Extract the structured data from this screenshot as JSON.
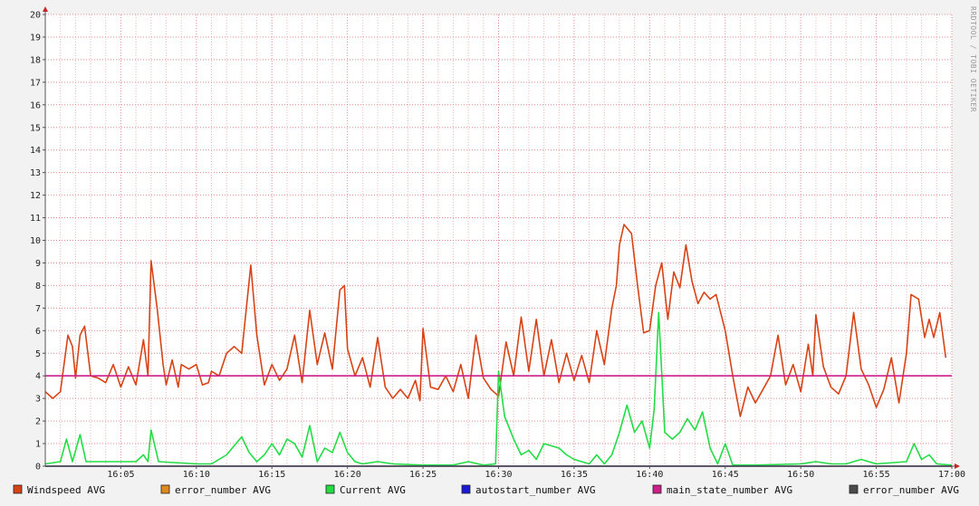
{
  "watermark": "RRDTOOL / TOBI OETIKER",
  "colors": {
    "background": "#f2f2f2",
    "plot_background": "#ffffff",
    "grid_minor": "#f0b8b8",
    "grid_major": "#e08c8c",
    "axis": "#c62828"
  },
  "chart_data": {
    "type": "line",
    "x_unit": "time (HH:MM)",
    "xlim": [
      "16:00",
      "17:00"
    ],
    "ylim": [
      0,
      20
    ],
    "y_ticks": [
      0,
      1,
      2,
      3,
      4,
      5,
      6,
      7,
      8,
      9,
      10,
      11,
      12,
      13,
      14,
      15,
      16,
      17,
      18,
      19,
      20
    ],
    "x_ticks": [
      "16:05",
      "16:10",
      "16:15",
      "16:20",
      "16:25",
      "16:30",
      "16:35",
      "16:40",
      "16:45",
      "16:50",
      "16:55",
      "17:00"
    ],
    "grid": true,
    "legend_position": "bottom",
    "series": [
      {
        "name": "Windspeed AVG",
        "color": "#d84315",
        "points": [
          [
            "16:00",
            3.3
          ],
          [
            "16:00.5",
            3.0
          ],
          [
            "16:01",
            3.3
          ],
          [
            "16:01.5",
            5.8
          ],
          [
            "16:01.8",
            5.3
          ],
          [
            "16:02",
            3.9
          ],
          [
            "16:02.3",
            5.8
          ],
          [
            "16:02.6",
            6.2
          ],
          [
            "16:03",
            4.0
          ],
          [
            "16:03.5",
            3.9
          ],
          [
            "16:04",
            3.7
          ],
          [
            "16:04.5",
            4.5
          ],
          [
            "16:05",
            3.5
          ],
          [
            "16:05.5",
            4.4
          ],
          [
            "16:06",
            3.6
          ],
          [
            "16:06.5",
            5.6
          ],
          [
            "16:06.8",
            4.0
          ],
          [
            "16:07",
            9.1
          ],
          [
            "16:07.4",
            7.0
          ],
          [
            "16:07.8",
            4.5
          ],
          [
            "16:08",
            3.6
          ],
          [
            "16:08.4",
            4.7
          ],
          [
            "16:08.8",
            3.5
          ],
          [
            "16:09",
            4.5
          ],
          [
            "16:09.5",
            4.3
          ],
          [
            "16:10",
            4.5
          ],
          [
            "16:10.4",
            3.6
          ],
          [
            "16:10.8",
            3.7
          ],
          [
            "16:11",
            4.2
          ],
          [
            "16:11.5",
            4.0
          ],
          [
            "16:12",
            5.0
          ],
          [
            "16:12.5",
            5.3
          ],
          [
            "16:13",
            5.0
          ],
          [
            "16:13.6",
            8.9
          ],
          [
            "16:14",
            5.8
          ],
          [
            "16:14.5",
            3.6
          ],
          [
            "16:15",
            4.5
          ],
          [
            "16:15.5",
            3.8
          ],
          [
            "16:16",
            4.3
          ],
          [
            "16:16.5",
            5.8
          ],
          [
            "16:17",
            3.7
          ],
          [
            "16:17.5",
            6.9
          ],
          [
            "16:18",
            4.5
          ],
          [
            "16:18.5",
            5.9
          ],
          [
            "16:19",
            4.3
          ],
          [
            "16:19.5",
            7.8
          ],
          [
            "16:19.8",
            8.0
          ],
          [
            "16:20",
            5.2
          ],
          [
            "16:20.5",
            4.0
          ],
          [
            "16:21",
            4.8
          ],
          [
            "16:21.5",
            3.5
          ],
          [
            "16:22",
            5.7
          ],
          [
            "16:22.5",
            3.5
          ],
          [
            "16:23",
            3.0
          ],
          [
            "16:23.5",
            3.4
          ],
          [
            "16:24",
            3.0
          ],
          [
            "16:24.5",
            3.8
          ],
          [
            "16:24.8",
            2.9
          ],
          [
            "16:25",
            6.1
          ],
          [
            "16:25.5",
            3.5
          ],
          [
            "16:26",
            3.4
          ],
          [
            "16:26.5",
            4.0
          ],
          [
            "16:27",
            3.3
          ],
          [
            "16:27.5",
            4.5
          ],
          [
            "16:28",
            3.0
          ],
          [
            "16:28.5",
            5.8
          ],
          [
            "16:29",
            3.9
          ],
          [
            "16:29.5",
            3.4
          ],
          [
            "16:30",
            3.1
          ],
          [
            "16:30.5",
            5.5
          ],
          [
            "16:31",
            4.0
          ],
          [
            "16:31.5",
            6.6
          ],
          [
            "16:32",
            4.2
          ],
          [
            "16:32.5",
            6.5
          ],
          [
            "16:33",
            4.0
          ],
          [
            "16:33.5",
            5.6
          ],
          [
            "16:34",
            3.7
          ],
          [
            "16:34.5",
            5.0
          ],
          [
            "16:35",
            3.8
          ],
          [
            "16:35.5",
            4.9
          ],
          [
            "16:36",
            3.7
          ],
          [
            "16:36.5",
            6.0
          ],
          [
            "16:37",
            4.5
          ],
          [
            "16:37.5",
            7.0
          ],
          [
            "16:37.8",
            8.0
          ],
          [
            "16:38",
            9.8
          ],
          [
            "16:38.3",
            10.7
          ],
          [
            "16:38.8",
            10.3
          ],
          [
            "16:39.2",
            8.0
          ],
          [
            "16:39.6",
            5.9
          ],
          [
            "16:40",
            6.0
          ],
          [
            "16:40.4",
            8.0
          ],
          [
            "16:40.8",
            9.0
          ],
          [
            "16:41.2",
            6.5
          ],
          [
            "16:41.6",
            8.6
          ],
          [
            "16:42",
            7.9
          ],
          [
            "16:42.4",
            9.8
          ],
          [
            "16:42.8",
            8.2
          ],
          [
            "16:43.2",
            7.2
          ],
          [
            "16:43.6",
            7.7
          ],
          [
            "16:44",
            7.4
          ],
          [
            "16:44.4",
            7.6
          ],
          [
            "16:45",
            6.0
          ],
          [
            "16:45.5",
            4.0
          ],
          [
            "16:46",
            2.2
          ],
          [
            "16:46.5",
            3.5
          ],
          [
            "16:47",
            2.8
          ],
          [
            "16:47.5",
            3.4
          ],
          [
            "16:48",
            4.0
          ],
          [
            "16:48.5",
            5.8
          ],
          [
            "16:49",
            3.6
          ],
          [
            "16:49.5",
            4.5
          ],
          [
            "16:50",
            3.3
          ],
          [
            "16:50.5",
            5.4
          ],
          [
            "16:50.8",
            4.0
          ],
          [
            "16:51",
            6.7
          ],
          [
            "16:51.5",
            4.4
          ],
          [
            "16:52",
            3.5
          ],
          [
            "16:52.5",
            3.2
          ],
          [
            "16:53",
            4.0
          ],
          [
            "16:53.5",
            6.8
          ],
          [
            "16:54",
            4.3
          ],
          [
            "16:54.5",
            3.6
          ],
          [
            "16:55",
            2.6
          ],
          [
            "16:55.5",
            3.4
          ],
          [
            "16:56",
            4.8
          ],
          [
            "16:56.5",
            2.8
          ],
          [
            "16:57",
            5.0
          ],
          [
            "16:57.3",
            7.6
          ],
          [
            "16:57.8",
            7.4
          ],
          [
            "16:58.2",
            5.7
          ],
          [
            "16:58.5",
            6.5
          ],
          [
            "16:58.8",
            5.7
          ],
          [
            "16:59.2",
            6.8
          ],
          [
            "16:59.6",
            4.8
          ]
        ]
      },
      {
        "name": "error_number AVG",
        "color": "#e08a1e",
        "constant": 0
      },
      {
        "name": "Current AVG",
        "color": "#22dd44",
        "points": [
          [
            "16:00",
            0.1
          ],
          [
            "16:01",
            0.2
          ],
          [
            "16:01.4",
            1.2
          ],
          [
            "16:01.8",
            0.2
          ],
          [
            "16:02.3",
            1.4
          ],
          [
            "16:02.7",
            0.2
          ],
          [
            "16:05",
            0.2
          ],
          [
            "16:06",
            0.2
          ],
          [
            "16:06.5",
            0.5
          ],
          [
            "16:06.8",
            0.2
          ],
          [
            "16:07",
            1.6
          ],
          [
            "16:07.5",
            0.2
          ],
          [
            "16:10",
            0.1
          ],
          [
            "16:11",
            0.1
          ],
          [
            "16:12",
            0.5
          ],
          [
            "16:12.5",
            0.9
          ],
          [
            "16:13",
            1.3
          ],
          [
            "16:13.5",
            0.6
          ],
          [
            "16:14",
            0.2
          ],
          [
            "16:14.5",
            0.5
          ],
          [
            "16:15",
            1.0
          ],
          [
            "16:15.5",
            0.5
          ],
          [
            "16:16",
            1.2
          ],
          [
            "16:16.5",
            1.0
          ],
          [
            "16:17",
            0.4
          ],
          [
            "16:17.5",
            1.8
          ],
          [
            "16:18",
            0.2
          ],
          [
            "16:18.5",
            0.8
          ],
          [
            "16:19",
            0.6
          ],
          [
            "16:19.5",
            1.5
          ],
          [
            "16:20",
            0.6
          ],
          [
            "16:20.5",
            0.2
          ],
          [
            "16:21",
            0.1
          ],
          [
            "16:22",
            0.2
          ],
          [
            "16:23",
            0.1
          ],
          [
            "16:25",
            0.05
          ],
          [
            "16:27",
            0.05
          ],
          [
            "16:28",
            0.2
          ],
          [
            "16:29",
            0.05
          ],
          [
            "16:29.8",
            0.1
          ],
          [
            "16:30",
            4.2
          ],
          [
            "16:30.4",
            2.2
          ],
          [
            "16:31",
            1.2
          ],
          [
            "16:31.5",
            0.5
          ],
          [
            "16:32",
            0.7
          ],
          [
            "16:32.5",
            0.3
          ],
          [
            "16:33",
            1.0
          ],
          [
            "16:34",
            0.8
          ],
          [
            "16:34.5",
            0.5
          ],
          [
            "16:35",
            0.3
          ],
          [
            "16:36",
            0.1
          ],
          [
            "16:36.5",
            0.5
          ],
          [
            "16:37",
            0.1
          ],
          [
            "16:37.5",
            0.5
          ],
          [
            "16:38",
            1.5
          ],
          [
            "16:38.5",
            2.7
          ],
          [
            "16:39",
            1.5
          ],
          [
            "16:39.5",
            2.0
          ],
          [
            "16:40",
            0.8
          ],
          [
            "16:40.3",
            2.5
          ],
          [
            "16:40.6",
            6.8
          ],
          [
            "16:41",
            1.5
          ],
          [
            "16:41.5",
            1.2
          ],
          [
            "16:42",
            1.5
          ],
          [
            "16:42.5",
            2.1
          ],
          [
            "16:43",
            1.6
          ],
          [
            "16:43.5",
            2.4
          ],
          [
            "16:44",
            0.8
          ],
          [
            "16:44.5",
            0.1
          ],
          [
            "16:45",
            1.0
          ],
          [
            "16:45.5",
            0.05
          ],
          [
            "16:47",
            0.05
          ],
          [
            "16:50",
            0.1
          ],
          [
            "16:51",
            0.2
          ],
          [
            "16:52",
            0.1
          ],
          [
            "16:53",
            0.1
          ],
          [
            "16:54",
            0.3
          ],
          [
            "16:55",
            0.1
          ],
          [
            "16:57",
            0.2
          ],
          [
            "16:57.5",
            1.0
          ],
          [
            "16:58",
            0.3
          ],
          [
            "16:58.5",
            0.5
          ],
          [
            "16:59",
            0.1
          ],
          [
            "17:00",
            0.05
          ]
        ]
      },
      {
        "name": "autostart_number AVG",
        "color": "#1a1ad6",
        "constant": 0
      },
      {
        "name": "main_state_number AVG",
        "color": "#cc1f8a",
        "constant": 4
      },
      {
        "name": "error_number AVG",
        "color": "#4a4a4a",
        "constant": 0
      }
    ]
  }
}
